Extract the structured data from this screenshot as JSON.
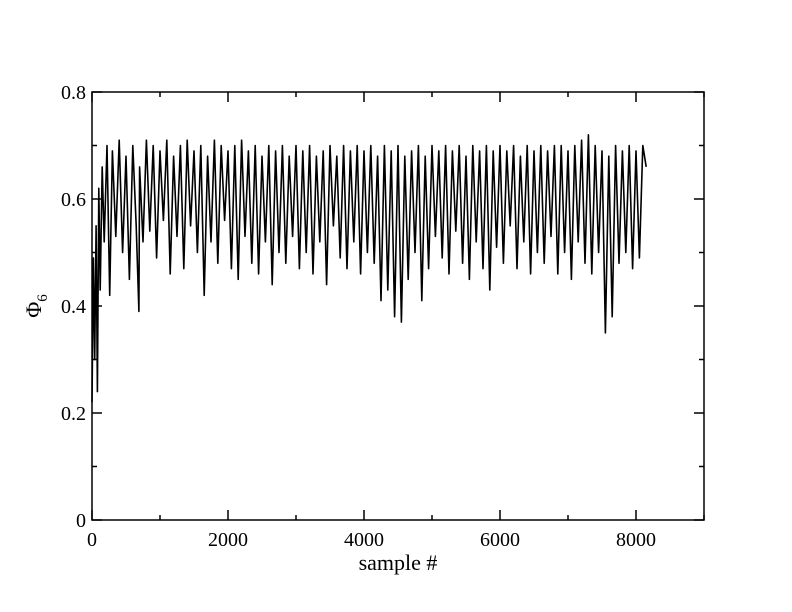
{
  "chart_data": {
    "type": "line",
    "title": "",
    "xlabel": "sample #",
    "ylabel": "Φ",
    "ylabel_subscript": "6",
    "xlim": [
      0,
      9000
    ],
    "ylim": [
      0,
      0.8
    ],
    "x_major_ticks": [
      0,
      2000,
      4000,
      6000,
      8000
    ],
    "x_tick_labels": [
      "0",
      "2000",
      "4000",
      "6000",
      "8000"
    ],
    "x_minor_ticks": [
      1000,
      3000,
      5000,
      7000,
      9000
    ],
    "y_major_ticks": [
      0,
      0.2,
      0.4,
      0.6,
      0.8
    ],
    "y_tick_labels": [
      "0",
      "0.2",
      "0.4",
      "0.6",
      "0.8"
    ],
    "y_minor_ticks": [
      0.1,
      0.3,
      0.5,
      0.7
    ],
    "grid": false,
    "legend": "none",
    "line_color": "#000000",
    "series": [
      {
        "x": [
          0,
          20,
          40,
          60,
          80,
          100,
          120,
          150,
          180,
          220,
          260,
          300,
          350,
          400,
          450,
          500,
          550,
          600,
          650,
          690,
          700,
          750,
          800,
          850,
          900,
          950,
          1000,
          1050,
          1100,
          1150,
          1200,
          1250,
          1300,
          1350,
          1400,
          1450,
          1500,
          1550,
          1600,
          1650,
          1700,
          1750,
          1800,
          1850,
          1900,
          1950,
          2000,
          2050,
          2100,
          2150,
          2200,
          2250,
          2300,
          2350,
          2400,
          2450,
          2500,
          2550,
          2600,
          2650,
          2700,
          2750,
          2800,
          2850,
          2900,
          2950,
          3000,
          3050,
          3100,
          3150,
          3200,
          3250,
          3300,
          3350,
          3400,
          3450,
          3500,
          3550,
          3600,
          3650,
          3700,
          3750,
          3800,
          3850,
          3900,
          3950,
          4000,
          4050,
          4100,
          4150,
          4200,
          4250,
          4300,
          4350,
          4400,
          4450,
          4500,
          4550,
          4600,
          4650,
          4700,
          4750,
          4800,
          4850,
          4900,
          4950,
          5000,
          5050,
          5100,
          5150,
          5200,
          5250,
          5300,
          5350,
          5400,
          5450,
          5500,
          5550,
          5600,
          5650,
          5700,
          5750,
          5800,
          5850,
          5900,
          5950,
          6000,
          6050,
          6100,
          6150,
          6200,
          6250,
          6300,
          6350,
          6400,
          6450,
          6500,
          6550,
          6600,
          6650,
          6700,
          6750,
          6800,
          6850,
          6900,
          6950,
          7000,
          7050,
          7100,
          7150,
          7200,
          7250,
          7300,
          7350,
          7400,
          7450,
          7500,
          7550,
          7600,
          7650,
          7700,
          7750,
          7800,
          7850,
          7900,
          7950,
          8000,
          8050,
          8100,
          8150
        ],
        "y": [
          0.22,
          0.49,
          0.3,
          0.55,
          0.24,
          0.62,
          0.43,
          0.66,
          0.52,
          0.7,
          0.42,
          0.69,
          0.53,
          0.71,
          0.5,
          0.68,
          0.45,
          0.7,
          0.55,
          0.39,
          0.66,
          0.52,
          0.71,
          0.54,
          0.7,
          0.49,
          0.69,
          0.56,
          0.71,
          0.46,
          0.68,
          0.53,
          0.7,
          0.47,
          0.71,
          0.55,
          0.69,
          0.5,
          0.7,
          0.42,
          0.68,
          0.52,
          0.71,
          0.48,
          0.7,
          0.56,
          0.69,
          0.47,
          0.7,
          0.45,
          0.71,
          0.53,
          0.69,
          0.48,
          0.7,
          0.46,
          0.68,
          0.52,
          0.7,
          0.44,
          0.69,
          0.5,
          0.7,
          0.48,
          0.68,
          0.53,
          0.7,
          0.47,
          0.69,
          0.5,
          0.7,
          0.46,
          0.68,
          0.52,
          0.69,
          0.44,
          0.7,
          0.55,
          0.68,
          0.49,
          0.7,
          0.47,
          0.69,
          0.52,
          0.7,
          0.46,
          0.69,
          0.5,
          0.7,
          0.48,
          0.68,
          0.41,
          0.7,
          0.43,
          0.69,
          0.38,
          0.7,
          0.37,
          0.68,
          0.45,
          0.69,
          0.5,
          0.7,
          0.41,
          0.68,
          0.47,
          0.7,
          0.53,
          0.69,
          0.49,
          0.7,
          0.46,
          0.69,
          0.54,
          0.7,
          0.48,
          0.68,
          0.45,
          0.7,
          0.52,
          0.69,
          0.47,
          0.7,
          0.43,
          0.69,
          0.51,
          0.7,
          0.48,
          0.69,
          0.55,
          0.7,
          0.47,
          0.68,
          0.52,
          0.7,
          0.46,
          0.69,
          0.5,
          0.7,
          0.48,
          0.69,
          0.53,
          0.7,
          0.46,
          0.7,
          0.5,
          0.69,
          0.45,
          0.7,
          0.52,
          0.71,
          0.48,
          0.72,
          0.46,
          0.7,
          0.5,
          0.69,
          0.35,
          0.68,
          0.38,
          0.7,
          0.48,
          0.69,
          0.5,
          0.7,
          0.47,
          0.69,
          0.49,
          0.7,
          0.66
        ]
      }
    ]
  }
}
